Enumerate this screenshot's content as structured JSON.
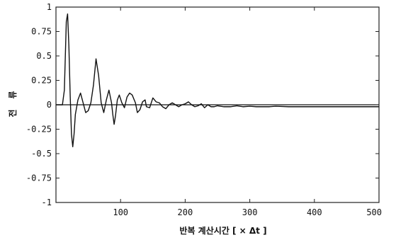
{
  "chart_data": {
    "type": "line",
    "xlabel": "반복 계산시간 [ × Δt ]",
    "ylabel": "전 류",
    "xlim": [
      0,
      500
    ],
    "ylim": [
      -1,
      1
    ],
    "x_ticks": [
      100,
      200,
      300,
      400,
      500
    ],
    "x_tick_labels": [
      "100",
      "200",
      "300",
      "400",
      "500"
    ],
    "y_ticks": [
      1,
      0.75,
      0.5,
      0.25,
      0,
      -0.25,
      -0.5,
      -0.75,
      -1
    ],
    "y_tick_labels": [
      "1",
      "0.75",
      "0.5",
      "0.25",
      "0",
      "-0.25",
      "-0.5",
      "-0.75",
      "-1"
    ],
    "zero_line": true,
    "grid": false,
    "series": [
      {
        "x": [
          0,
          10,
          13,
          16,
          18,
          20,
          22,
          24,
          26,
          28,
          30,
          34,
          38,
          42,
          46,
          50,
          54,
          58,
          62,
          66,
          70,
          74,
          78,
          82,
          86,
          88,
          90,
          92,
          95,
          98,
          102,
          106,
          110,
          114,
          118,
          123,
          126,
          130,
          134,
          138,
          140,
          145,
          150,
          155,
          160,
          165,
          170,
          175,
          180,
          185,
          190,
          195,
          200,
          205,
          210,
          215,
          220,
          225,
          230,
          235,
          240,
          245,
          250,
          260,
          270,
          280,
          290,
          300,
          310,
          320,
          330,
          340,
          360,
          380,
          400,
          420,
          440,
          460,
          480,
          500
        ],
        "y": [
          0,
          0,
          0.15,
          0.85,
          0.93,
          0.6,
          0.1,
          -0.3,
          -0.43,
          -0.3,
          -0.1,
          0.05,
          0.12,
          0.02,
          -0.08,
          -0.06,
          0.02,
          0.2,
          0.47,
          0.3,
          0.02,
          -0.08,
          0.05,
          0.15,
          0.02,
          -0.1,
          -0.2,
          -0.12,
          0.05,
          0.1,
          0.02,
          -0.03,
          0.08,
          0.12,
          0.1,
          0.02,
          -0.08,
          -0.05,
          0.03,
          0.05,
          -0.02,
          -0.03,
          0.07,
          0.03,
          0.02,
          -0.02,
          -0.04,
          0.0,
          0.02,
          0.0,
          -0.02,
          0.0,
          0.01,
          0.03,
          0.0,
          -0.02,
          -0.01,
          0.01,
          -0.03,
          0.0,
          -0.02,
          -0.02,
          -0.01,
          -0.02,
          -0.02,
          -0.01,
          -0.02,
          -0.015,
          -0.02,
          -0.02,
          -0.02,
          -0.015,
          -0.02,
          -0.02,
          -0.02,
          -0.02,
          -0.02,
          -0.02,
          -0.02,
          -0.02
        ]
      }
    ]
  }
}
